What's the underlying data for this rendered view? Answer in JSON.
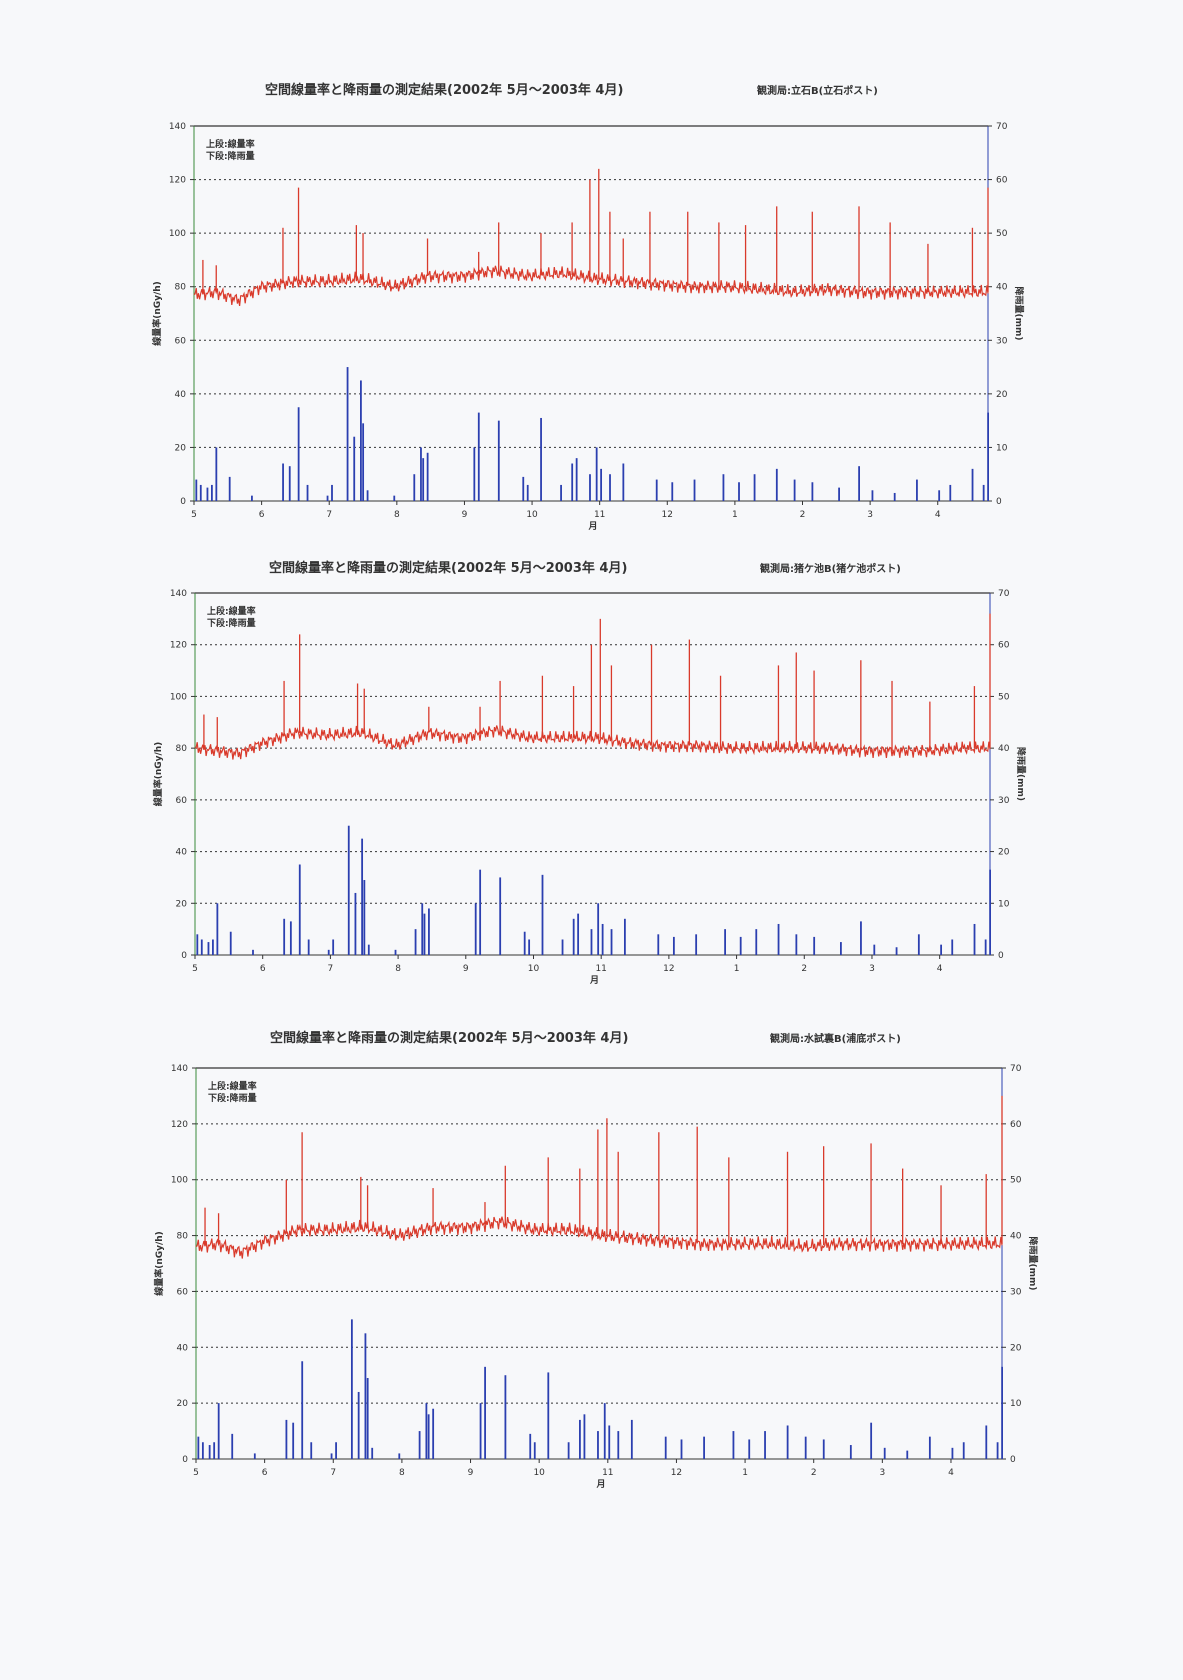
{
  "charts_common": {
    "title": "空間線量率と降雨量の測定結果(2002年 5月～2003年 4月)",
    "legend_upper": "上段:線量率",
    "legend_lower": "下段:降雨量",
    "ylabel_left": "線量率(nGy/h)",
    "ylabel_right": "降雨量(mm)",
    "xlabel": "月",
    "colors": {
      "dose": "#d93a2b",
      "rain": "#2b3fb0"
    }
  },
  "chart_data": [
    {
      "type": "line+bar",
      "title": "空間線量率と降雨量の測定結果(2002年 5月～2003年 4月)",
      "station": "観測局:立石B(立石ポスト)",
      "xlabel": "月",
      "ylabel": "線量率(nGy/h)",
      "ylabel2": "降雨量(mm)",
      "ylim": [
        0,
        140
      ],
      "y2lim": [
        0,
        70
      ],
      "yticks": [
        "0",
        "20",
        "40",
        "60",
        "80",
        "100",
        "120",
        "140"
      ],
      "y2ticks": [
        "0",
        "10",
        "20",
        "30",
        "40",
        "50",
        "60",
        "70"
      ],
      "xticks": [
        "5",
        "6",
        "7",
        "8",
        "9",
        "10",
        "11",
        "12",
        "1",
        "2",
        "3",
        "4"
      ],
      "x_unit": "days since May 1 2002",
      "grid": "dotted horizontal",
      "legend": "top-left",
      "dose_baseline": [
        [
          0,
          77
        ],
        [
          10,
          78
        ],
        [
          20,
          75
        ],
        [
          30,
          80
        ],
        [
          45,
          82
        ],
        [
          60,
          82
        ],
        [
          75,
          83
        ],
        [
          90,
          80
        ],
        [
          105,
          84
        ],
        [
          120,
          84
        ],
        [
          135,
          86
        ],
        [
          150,
          84
        ],
        [
          165,
          85
        ],
        [
          180,
          83
        ],
        [
          195,
          82
        ],
        [
          210,
          81
        ],
        [
          225,
          80
        ],
        [
          240,
          80
        ],
        [
          255,
          79
        ],
        [
          270,
          78
        ],
        [
          285,
          79
        ],
        [
          300,
          78
        ],
        [
          315,
          78
        ],
        [
          330,
          78
        ],
        [
          345,
          78
        ],
        [
          357,
          78
        ]
      ],
      "dose_spikes": [
        [
          4,
          90
        ],
        [
          10,
          88
        ],
        [
          40,
          102
        ],
        [
          47,
          117
        ],
        [
          73,
          103
        ],
        [
          76,
          100
        ],
        [
          105,
          98
        ],
        [
          128,
          93
        ],
        [
          137,
          104
        ],
        [
          156,
          100
        ],
        [
          170,
          104
        ],
        [
          178,
          120
        ],
        [
          182,
          124
        ],
        [
          187,
          108
        ],
        [
          193,
          98
        ],
        [
          205,
          108
        ],
        [
          222,
          108
        ],
        [
          236,
          104
        ],
        [
          248,
          103
        ],
        [
          262,
          110
        ],
        [
          278,
          108
        ],
        [
          299,
          110
        ],
        [
          313,
          104
        ],
        [
          330,
          96
        ],
        [
          350,
          102
        ],
        [
          357,
          117
        ]
      ],
      "rain": [
        [
          1,
          4
        ],
        [
          3,
          3
        ],
        [
          6,
          2.5
        ],
        [
          8,
          3
        ],
        [
          10,
          10
        ],
        [
          16,
          4.5
        ],
        [
          26,
          1
        ],
        [
          40,
          7
        ],
        [
          43,
          6.5
        ],
        [
          47,
          17.5
        ],
        [
          51,
          3
        ],
        [
          60,
          1
        ],
        [
          62,
          3
        ],
        [
          69,
          25
        ],
        [
          72,
          12
        ],
        [
          75,
          22.5
        ],
        [
          76,
          14.5
        ],
        [
          78,
          2
        ],
        [
          90,
          1
        ],
        [
          99,
          5
        ],
        [
          102,
          10
        ],
        [
          103,
          8
        ],
        [
          105,
          9
        ],
        [
          126,
          10
        ],
        [
          128,
          16.5
        ],
        [
          137,
          15
        ],
        [
          148,
          4.5
        ],
        [
          150,
          3
        ],
        [
          156,
          15.5
        ],
        [
          165,
          3
        ],
        [
          170,
          7
        ],
        [
          172,
          8
        ],
        [
          178,
          5
        ],
        [
          181,
          10
        ],
        [
          183,
          6
        ],
        [
          187,
          5
        ],
        [
          193,
          7
        ],
        [
          208,
          4
        ],
        [
          215,
          3.5
        ],
        [
          225,
          4
        ],
        [
          238,
          5
        ],
        [
          245,
          3.5
        ],
        [
          252,
          5
        ],
        [
          262,
          6
        ],
        [
          270,
          4
        ],
        [
          278,
          3.5
        ],
        [
          290,
          2.5
        ],
        [
          299,
          6.5
        ],
        [
          305,
          2
        ],
        [
          315,
          1.5
        ],
        [
          325,
          4
        ],
        [
          335,
          2
        ],
        [
          340,
          3
        ],
        [
          350,
          6
        ],
        [
          355,
          3
        ],
        [
          357,
          16.5
        ]
      ]
    },
    {
      "type": "line+bar",
      "title": "空間線量率と降雨量の測定結果(2002年 5月～2003年 4月)",
      "station": "観測局:猪ケ池B(猪ケ池ポスト)",
      "xlabel": "月",
      "ylabel": "線量率(nGy/h)",
      "ylabel2": "降雨量(mm)",
      "ylim": [
        0,
        140
      ],
      "y2lim": [
        0,
        70
      ],
      "yticks": [
        "0",
        "20",
        "40",
        "60",
        "80",
        "100",
        "120",
        "140"
      ],
      "y2ticks": [
        "0",
        "10",
        "20",
        "30",
        "40",
        "50",
        "60",
        "70"
      ],
      "xticks": [
        "5",
        "6",
        "7",
        "8",
        "9",
        "10",
        "11",
        "12",
        "1",
        "2",
        "3",
        "4"
      ],
      "x_unit": "days since May 1 2002",
      "grid": "dotted horizontal",
      "legend": "top-left",
      "dose_baseline": [
        [
          0,
          80
        ],
        [
          10,
          79
        ],
        [
          20,
          78
        ],
        [
          30,
          82
        ],
        [
          45,
          86
        ],
        [
          60,
          85
        ],
        [
          75,
          86
        ],
        [
          90,
          81
        ],
        [
          105,
          86
        ],
        [
          120,
          84
        ],
        [
          135,
          87
        ],
        [
          150,
          84
        ],
        [
          165,
          84
        ],
        [
          180,
          84
        ],
        [
          195,
          82
        ],
        [
          210,
          81
        ],
        [
          225,
          81
        ],
        [
          240,
          80
        ],
        [
          255,
          80
        ],
        [
          270,
          80
        ],
        [
          285,
          80
        ],
        [
          300,
          79
        ],
        [
          315,
          79
        ],
        [
          330,
          79
        ],
        [
          345,
          80
        ],
        [
          357,
          80
        ]
      ],
      "dose_spikes": [
        [
          4,
          93
        ],
        [
          10,
          92
        ],
        [
          40,
          106
        ],
        [
          47,
          124
        ],
        [
          73,
          105
        ],
        [
          76,
          103
        ],
        [
          105,
          96
        ],
        [
          128,
          96
        ],
        [
          137,
          106
        ],
        [
          156,
          108
        ],
        [
          170,
          104
        ],
        [
          178,
          120
        ],
        [
          182,
          130
        ],
        [
          187,
          112
        ],
        [
          205,
          120
        ],
        [
          222,
          122
        ],
        [
          236,
          108
        ],
        [
          262,
          112
        ],
        [
          270,
          117
        ],
        [
          278,
          110
        ],
        [
          299,
          114
        ],
        [
          313,
          106
        ],
        [
          330,
          98
        ],
        [
          350,
          104
        ],
        [
          357,
          132
        ]
      ],
      "rain": [
        [
          1,
          4
        ],
        [
          3,
          3
        ],
        [
          6,
          2.5
        ],
        [
          8,
          3
        ],
        [
          10,
          10
        ],
        [
          16,
          4.5
        ],
        [
          26,
          1
        ],
        [
          40,
          7
        ],
        [
          43,
          6.5
        ],
        [
          47,
          17.5
        ],
        [
          51,
          3
        ],
        [
          60,
          1
        ],
        [
          62,
          3
        ],
        [
          69,
          25
        ],
        [
          72,
          12
        ],
        [
          75,
          22.5
        ],
        [
          76,
          14.5
        ],
        [
          78,
          2
        ],
        [
          90,
          1
        ],
        [
          99,
          5
        ],
        [
          102,
          10
        ],
        [
          103,
          8
        ],
        [
          105,
          9
        ],
        [
          126,
          10
        ],
        [
          128,
          16.5
        ],
        [
          137,
          15
        ],
        [
          148,
          4.5
        ],
        [
          150,
          3
        ],
        [
          156,
          15.5
        ],
        [
          165,
          3
        ],
        [
          170,
          7
        ],
        [
          172,
          8
        ],
        [
          178,
          5
        ],
        [
          181,
          10
        ],
        [
          183,
          6
        ],
        [
          187,
          5
        ],
        [
          193,
          7
        ],
        [
          208,
          4
        ],
        [
          215,
          3.5
        ],
        [
          225,
          4
        ],
        [
          238,
          5
        ],
        [
          245,
          3.5
        ],
        [
          252,
          5
        ],
        [
          262,
          6
        ],
        [
          270,
          4
        ],
        [
          278,
          3.5
        ],
        [
          290,
          2.5
        ],
        [
          299,
          6.5
        ],
        [
          305,
          2
        ],
        [
          315,
          1.5
        ],
        [
          325,
          4
        ],
        [
          335,
          2
        ],
        [
          340,
          3
        ],
        [
          350,
          6
        ],
        [
          355,
          3
        ],
        [
          357,
          16.5
        ]
      ]
    },
    {
      "type": "line+bar",
      "title": "空間線量率と降雨量の測定結果(2002年 5月～2003年 4月)",
      "station": "観測局:水試裏B(浦底ポスト)",
      "xlabel": "月",
      "ylabel": "線量率(nGy/h)",
      "ylabel2": "降雨量(mm)",
      "ylim": [
        0,
        140
      ],
      "y2lim": [
        0,
        70
      ],
      "yticks": [
        "0",
        "20",
        "40",
        "60",
        "80",
        "100",
        "120",
        "140"
      ],
      "y2ticks": [
        "0",
        "10",
        "20",
        "30",
        "40",
        "50",
        "60",
        "70"
      ],
      "xticks": [
        "5",
        "6",
        "7",
        "8",
        "9",
        "10",
        "11",
        "12",
        "1",
        "2",
        "3",
        "4"
      ],
      "x_unit": "days since May 1 2002",
      "grid": "dotted horizontal",
      "legend": "top-left",
      "dose_baseline": [
        [
          0,
          76
        ],
        [
          10,
          77
        ],
        [
          20,
          74
        ],
        [
          30,
          78
        ],
        [
          45,
          82
        ],
        [
          60,
          82
        ],
        [
          75,
          83
        ],
        [
          90,
          80
        ],
        [
          105,
          83
        ],
        [
          120,
          83
        ],
        [
          135,
          85
        ],
        [
          150,
          82
        ],
        [
          165,
          82
        ],
        [
          180,
          80
        ],
        [
          195,
          79
        ],
        [
          210,
          78
        ],
        [
          225,
          77
        ],
        [
          240,
          77
        ],
        [
          255,
          77
        ],
        [
          270,
          76
        ],
        [
          285,
          77
        ],
        [
          300,
          77
        ],
        [
          315,
          77
        ],
        [
          330,
          77
        ],
        [
          345,
          77
        ],
        [
          357,
          77
        ]
      ],
      "dose_spikes": [
        [
          4,
          90
        ],
        [
          10,
          88
        ],
        [
          40,
          100
        ],
        [
          47,
          117
        ],
        [
          73,
          101
        ],
        [
          76,
          98
        ],
        [
          105,
          97
        ],
        [
          128,
          92
        ],
        [
          137,
          105
        ],
        [
          156,
          108
        ],
        [
          170,
          104
        ],
        [
          178,
          118
        ],
        [
          182,
          122
        ],
        [
          187,
          110
        ],
        [
          205,
          117
        ],
        [
          222,
          119
        ],
        [
          236,
          108
        ],
        [
          262,
          110
        ],
        [
          278,
          112
        ],
        [
          299,
          113
        ],
        [
          313,
          104
        ],
        [
          330,
          98
        ],
        [
          350,
          102
        ],
        [
          357,
          130
        ]
      ],
      "rain": [
        [
          1,
          4
        ],
        [
          3,
          3
        ],
        [
          6,
          2.5
        ],
        [
          8,
          3
        ],
        [
          10,
          10
        ],
        [
          16,
          4.5
        ],
        [
          26,
          1
        ],
        [
          40,
          7
        ],
        [
          43,
          6.5
        ],
        [
          47,
          17.5
        ],
        [
          51,
          3
        ],
        [
          60,
          1
        ],
        [
          62,
          3
        ],
        [
          69,
          25
        ],
        [
          72,
          12
        ],
        [
          75,
          22.5
        ],
        [
          76,
          14.5
        ],
        [
          78,
          2
        ],
        [
          90,
          1
        ],
        [
          99,
          5
        ],
        [
          102,
          10
        ],
        [
          103,
          8
        ],
        [
          105,
          9
        ],
        [
          126,
          10
        ],
        [
          128,
          16.5
        ],
        [
          137,
          15
        ],
        [
          148,
          4.5
        ],
        [
          150,
          3
        ],
        [
          156,
          15.5
        ],
        [
          165,
          3
        ],
        [
          170,
          7
        ],
        [
          172,
          8
        ],
        [
          178,
          5
        ],
        [
          181,
          10
        ],
        [
          183,
          6
        ],
        [
          187,
          5
        ],
        [
          193,
          7
        ],
        [
          208,
          4
        ],
        [
          215,
          3.5
        ],
        [
          225,
          4
        ],
        [
          238,
          5
        ],
        [
          245,
          3.5
        ],
        [
          252,
          5
        ],
        [
          262,
          6
        ],
        [
          270,
          4
        ],
        [
          278,
          3.5
        ],
        [
          290,
          2.5
        ],
        [
          299,
          6.5
        ],
        [
          305,
          2
        ],
        [
          315,
          1.5
        ],
        [
          325,
          4
        ],
        [
          335,
          2
        ],
        [
          340,
          3
        ],
        [
          350,
          6
        ],
        [
          355,
          3
        ],
        [
          357,
          16.5
        ]
      ]
    }
  ]
}
